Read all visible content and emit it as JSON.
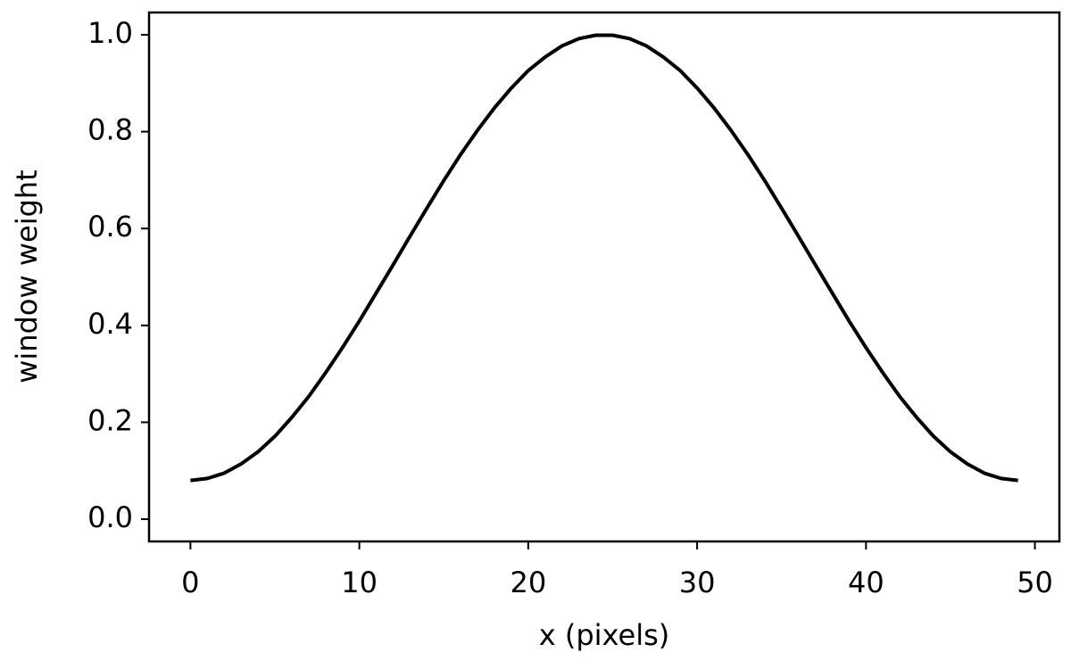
{
  "chart_data": {
    "type": "line",
    "xlabel": "x (pixels)",
    "ylabel": "window weight",
    "color": "#000000",
    "x": [
      0,
      1,
      2,
      3,
      4,
      5,
      6,
      7,
      8,
      9,
      10,
      11,
      12,
      13,
      14,
      15,
      16,
      17,
      18,
      19,
      20,
      21,
      22,
      23,
      24,
      25,
      26,
      27,
      28,
      29,
      30,
      31,
      32,
      33,
      34,
      35,
      36,
      37,
      38,
      39,
      40,
      41,
      42,
      43,
      44,
      45,
      46,
      47,
      48,
      49
    ],
    "values": [
      0.08,
      0.084,
      0.095,
      0.114,
      0.139,
      0.171,
      0.21,
      0.253,
      0.302,
      0.354,
      0.409,
      0.467,
      0.525,
      0.584,
      0.642,
      0.699,
      0.753,
      0.803,
      0.849,
      0.89,
      0.926,
      0.954,
      0.977,
      0.992,
      0.999,
      0.999,
      0.992,
      0.977,
      0.954,
      0.926,
      0.89,
      0.849,
      0.803,
      0.753,
      0.699,
      0.642,
      0.584,
      0.525,
      0.467,
      0.409,
      0.354,
      0.302,
      0.253,
      0.21,
      0.171,
      0.139,
      0.114,
      0.095,
      0.084,
      0.08
    ],
    "xlim": [
      -2.45,
      51.45
    ],
    "xticks": [
      0,
      10,
      20,
      30,
      40,
      50
    ],
    "ylim": [
      -0.046,
      1.046
    ],
    "yticks": [
      {
        "value": 0,
        "label": "0.0"
      },
      0.2,
      0.4,
      0.6,
      0.8,
      {
        "value": 1,
        "label": "1.0"
      }
    ],
    "grid": false
  }
}
